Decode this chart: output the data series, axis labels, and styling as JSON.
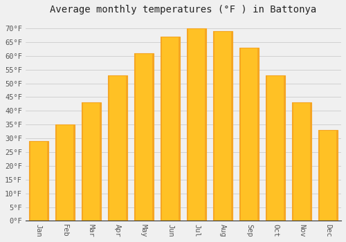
{
  "title": "Average monthly temperatures (°F ) in Battonya",
  "months": [
    "Jan",
    "Feb",
    "Mar",
    "Apr",
    "May",
    "Jun",
    "Jul",
    "Aug",
    "Sep",
    "Oct",
    "Nov",
    "Dec"
  ],
  "values": [
    29,
    35,
    43,
    53,
    61,
    67,
    70,
    69,
    63,
    53,
    43,
    33
  ],
  "bar_color_main": "#FFC125",
  "bar_color_edge": "#F5A623",
  "background_color": "#F0F0F0",
  "plot_bg_color": "#F0F0F0",
  "grid_color": "#CCCCCC",
  "tick_label_color": "#555555",
  "title_color": "#222222",
  "ylim": [
    0,
    73
  ],
  "yticks": [
    0,
    5,
    10,
    15,
    20,
    25,
    30,
    35,
    40,
    45,
    50,
    55,
    60,
    65,
    70
  ],
  "ytick_labels": [
    "0°F",
    "5°F",
    "10°F",
    "15°F",
    "20°F",
    "25°F",
    "30°F",
    "35°F",
    "40°F",
    "45°F",
    "50°F",
    "55°F",
    "60°F",
    "65°F",
    "70°F"
  ],
  "title_fontsize": 10,
  "tick_fontsize": 7.5,
  "font_family": "monospace",
  "bar_width": 0.75
}
